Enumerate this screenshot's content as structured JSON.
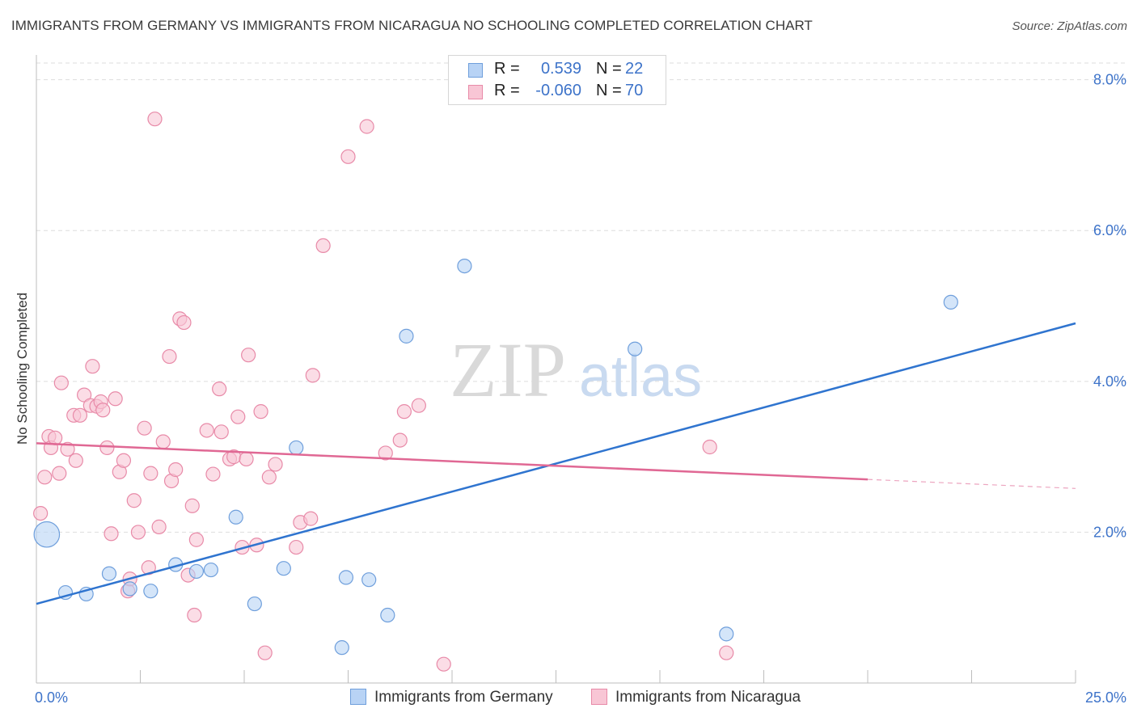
{
  "title": "IMMIGRANTS FROM GERMANY VS IMMIGRANTS FROM NICARAGUA NO SCHOOLING COMPLETED CORRELATION CHART",
  "source": "Source: ZipAtlas.com",
  "watermark": {
    "zip": "ZIP",
    "atlas": "atlas"
  },
  "legend": {
    "rows": [
      {
        "r_label": "R =",
        "r_value": "0.539",
        "n_label": "N =",
        "n_value": "22"
      },
      {
        "r_label": "R =",
        "r_value": "-0.060",
        "n_label": "N =",
        "n_value": "70"
      }
    ]
  },
  "colors": {
    "germany_fill": "#b8d3f5",
    "germany_stroke": "#6f9fdc",
    "germany_line": "#2f74cf",
    "nicaragua_fill": "#f8c6d5",
    "nicaragua_stroke": "#e88aa8",
    "nicaragua_line": "#e06894",
    "tick_label": "#3d73c9",
    "grid": "#dddddd"
  },
  "chart_data": {
    "type": "scatter",
    "title": "IMMIGRANTS FROM GERMANY VS IMMIGRANTS FROM NICARAGUA NO SCHOOLING COMPLETED CORRELATION CHART",
    "xlabel": "",
    "ylabel": "No Schooling Completed",
    "xlim": [
      0,
      25
    ],
    "ylim": [
      0,
      8.2
    ],
    "x_tick_labels": [
      "0.0%",
      "25.0%"
    ],
    "y_ticks": [
      2,
      4,
      6,
      8
    ],
    "y_tick_labels": [
      "2.0%",
      "4.0%",
      "6.0%",
      "8.0%"
    ],
    "grid": true,
    "legend_position": "top-center",
    "series": [
      {
        "name": "Immigrants from Germany",
        "r": 0.539,
        "n": 22,
        "points": [
          [
            0.25,
            1.97,
            3
          ],
          [
            0.7,
            1.2,
            1
          ],
          [
            1.2,
            1.18,
            1
          ],
          [
            1.75,
            1.45,
            1
          ],
          [
            2.25,
            1.25,
            1
          ],
          [
            2.75,
            1.22,
            1
          ],
          [
            3.35,
            1.57,
            1
          ],
          [
            3.85,
            1.48,
            1
          ],
          [
            4.2,
            1.5,
            1
          ],
          [
            4.8,
            2.2,
            1
          ],
          [
            5.25,
            1.05,
            1
          ],
          [
            5.95,
            1.52,
            1
          ],
          [
            6.25,
            3.12,
            1
          ],
          [
            7.35,
            0.47,
            1
          ],
          [
            7.45,
            1.4,
            1
          ],
          [
            8.0,
            1.37,
            1
          ],
          [
            8.45,
            0.9,
            1
          ],
          [
            8.9,
            4.6,
            1
          ],
          [
            10.3,
            5.53,
            1
          ],
          [
            14.4,
            4.43,
            1
          ],
          [
            16.6,
            0.65,
            1
          ],
          [
            22.0,
            5.05,
            1
          ]
        ],
        "trend": {
          "x": [
            0,
            25
          ],
          "y": [
            1.05,
            4.77
          ]
        }
      },
      {
        "name": "Immigrants from Nicaragua",
        "r": -0.06,
        "n": 70,
        "points": [
          [
            0.1,
            2.25
          ],
          [
            0.2,
            2.73
          ],
          [
            0.3,
            3.27
          ],
          [
            0.35,
            3.12
          ],
          [
            0.45,
            3.25
          ],
          [
            0.55,
            2.78
          ],
          [
            0.6,
            3.98
          ],
          [
            0.75,
            3.1
          ],
          [
            0.9,
            3.55
          ],
          [
            0.95,
            2.95
          ],
          [
            1.05,
            3.55
          ],
          [
            1.15,
            3.82
          ],
          [
            1.3,
            3.68
          ],
          [
            1.35,
            4.2
          ],
          [
            1.45,
            3.67
          ],
          [
            1.55,
            3.73
          ],
          [
            1.6,
            3.62
          ],
          [
            1.7,
            3.12
          ],
          [
            1.8,
            1.98
          ],
          [
            1.9,
            3.77
          ],
          [
            2.0,
            2.8
          ],
          [
            2.1,
            2.95
          ],
          [
            2.2,
            1.22
          ],
          [
            2.25,
            1.38
          ],
          [
            2.35,
            2.42
          ],
          [
            2.45,
            2.0
          ],
          [
            2.6,
            3.38
          ],
          [
            2.7,
            1.53
          ],
          [
            2.75,
            2.78
          ],
          [
            2.85,
            7.48
          ],
          [
            2.95,
            2.07
          ],
          [
            3.05,
            3.2
          ],
          [
            3.2,
            4.33
          ],
          [
            3.25,
            2.68
          ],
          [
            3.35,
            2.83
          ],
          [
            3.45,
            4.83
          ],
          [
            3.55,
            4.78
          ],
          [
            3.65,
            1.43
          ],
          [
            3.75,
            2.35
          ],
          [
            3.8,
            0.9
          ],
          [
            3.85,
            1.9
          ],
          [
            4.1,
            3.35
          ],
          [
            4.25,
            2.77
          ],
          [
            4.4,
            3.9
          ],
          [
            4.45,
            3.33
          ],
          [
            4.65,
            2.97
          ],
          [
            4.75,
            3.0
          ],
          [
            4.85,
            3.53
          ],
          [
            4.95,
            1.8
          ],
          [
            5.05,
            2.97
          ],
          [
            5.1,
            4.35
          ],
          [
            5.3,
            1.83
          ],
          [
            5.4,
            3.6
          ],
          [
            5.5,
            0.4
          ],
          [
            5.6,
            2.73
          ],
          [
            5.75,
            2.9
          ],
          [
            6.25,
            1.8
          ],
          [
            6.35,
            2.13
          ],
          [
            6.6,
            2.18
          ],
          [
            6.65,
            4.08
          ],
          [
            6.9,
            5.8
          ],
          [
            7.5,
            6.98
          ],
          [
            7.95,
            7.38
          ],
          [
            8.4,
            3.05
          ],
          [
            8.75,
            3.22
          ],
          [
            8.85,
            3.6
          ],
          [
            9.2,
            3.68
          ],
          [
            9.8,
            0.25
          ],
          [
            16.2,
            3.13
          ],
          [
            16.6,
            0.4
          ]
        ],
        "trend": {
          "x": [
            0,
            20
          ],
          "y": [
            3.18,
            2.7
          ],
          "dashed_to": [
            25,
            2.58
          ]
        }
      }
    ]
  }
}
